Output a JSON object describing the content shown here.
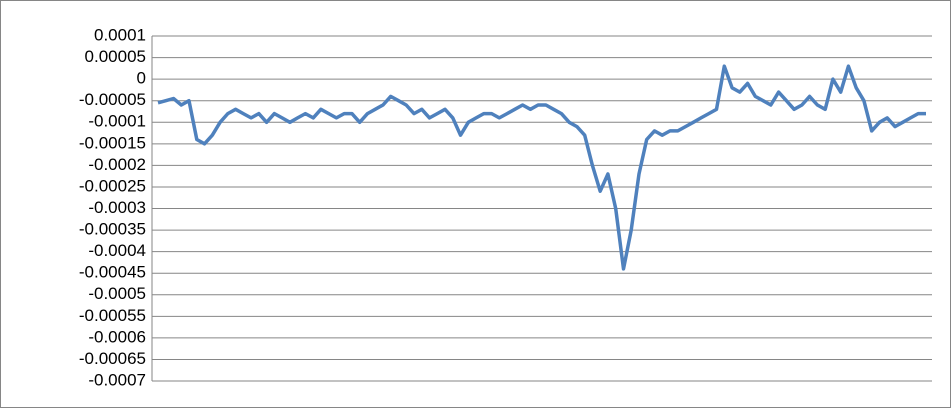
{
  "chart_data": {
    "type": "line",
    "color": "#4f81bd",
    "grid": true,
    "ylim": [
      -0.0007,
      0.0001
    ],
    "yticks": [
      0.0001,
      5e-05,
      0,
      -5e-05,
      -0.0001,
      -0.00015,
      -0.0002,
      -0.00025,
      -0.0003,
      -0.00035,
      -0.0004,
      -0.00045,
      -0.0005,
      -0.00055,
      -0.0006,
      -0.00065,
      -0.0007
    ],
    "values": [
      -5.5e-05,
      -5e-05,
      -4.5e-05,
      -6e-05,
      -5e-05,
      -0.00014,
      -0.00015,
      -0.00013,
      -0.0001,
      -8e-05,
      -7e-05,
      -8e-05,
      -9e-05,
      -8e-05,
      -0.0001,
      -8e-05,
      -9e-05,
      -0.0001,
      -9e-05,
      -8e-05,
      -9e-05,
      -7e-05,
      -8e-05,
      -9e-05,
      -8e-05,
      -8e-05,
      -0.0001,
      -8e-05,
      -7e-05,
      -6e-05,
      -4e-05,
      -5e-05,
      -6e-05,
      -8e-05,
      -7e-05,
      -9e-05,
      -8e-05,
      -7e-05,
      -9e-05,
      -0.00013,
      -0.0001,
      -9e-05,
      -8e-05,
      -8e-05,
      -9e-05,
      -8e-05,
      -7e-05,
      -6e-05,
      -7e-05,
      -6e-05,
      -6e-05,
      -7e-05,
      -8e-05,
      -0.0001,
      -0.00011,
      -0.00013,
      -0.0002,
      -0.00026,
      -0.00022,
      -0.0003,
      -0.00044,
      -0.00035,
      -0.00022,
      -0.00014,
      -0.00012,
      -0.00013,
      -0.00012,
      -0.00012,
      -0.00011,
      -0.0001,
      -9e-05,
      -8e-05,
      -7e-05,
      3e-05,
      -2e-05,
      -3e-05,
      -1e-05,
      -4e-05,
      -5e-05,
      -6e-05,
      -3e-05,
      -5e-05,
      -7e-05,
      -6e-05,
      -4e-05,
      -6e-05,
      -7e-05,
      0,
      -3e-05,
      3e-05,
      -2e-05,
      -5e-05,
      -0.00012,
      -0.0001,
      -9e-05,
      -0.00011,
      -0.0001,
      -9e-05,
      -8e-05,
      -8e-05
    ]
  }
}
